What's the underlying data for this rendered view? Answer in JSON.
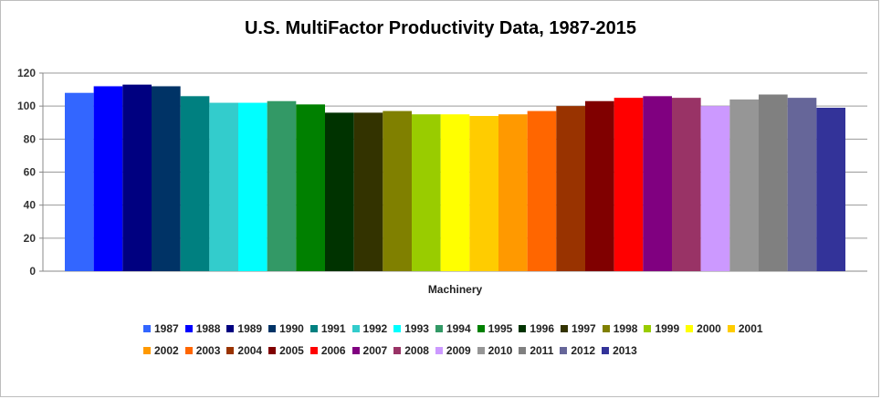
{
  "chart_data": {
    "type": "bar",
    "title": "U.S. MultiFactor Productivity Data, 1987-2015",
    "xlabel": "",
    "ylabel": "",
    "categories": [
      "Machinery"
    ],
    "ylim": [
      0,
      120
    ],
    "yticks": [
      0,
      20,
      40,
      60,
      80,
      100,
      120
    ],
    "grid": true,
    "legend_position": "bottom",
    "series": [
      {
        "name": "1987",
        "color": "#3366ff",
        "values": [
          108
        ]
      },
      {
        "name": "1988",
        "color": "#0000ff",
        "values": [
          112
        ]
      },
      {
        "name": "1989",
        "color": "#000080",
        "values": [
          113
        ]
      },
      {
        "name": "1990",
        "color": "#003366",
        "values": [
          112
        ]
      },
      {
        "name": "1991",
        "color": "#008080",
        "values": [
          106
        ]
      },
      {
        "name": "1992",
        "color": "#33cccc",
        "values": [
          102
        ]
      },
      {
        "name": "1993",
        "color": "#00ffff",
        "values": [
          102
        ]
      },
      {
        "name": "1994",
        "color": "#339966",
        "values": [
          103
        ]
      },
      {
        "name": "1995",
        "color": "#008000",
        "values": [
          101
        ]
      },
      {
        "name": "1996",
        "color": "#003300",
        "values": [
          96
        ]
      },
      {
        "name": "1997",
        "color": "#333300",
        "values": [
          96
        ]
      },
      {
        "name": "1998",
        "color": "#808000",
        "values": [
          97
        ]
      },
      {
        "name": "1999",
        "color": "#99cc00",
        "values": [
          95
        ]
      },
      {
        "name": "2000",
        "color": "#ffff00",
        "values": [
          95
        ]
      },
      {
        "name": "2001",
        "color": "#ffcc00",
        "values": [
          94
        ]
      },
      {
        "name": "2002",
        "color": "#ff9900",
        "values": [
          95
        ]
      },
      {
        "name": "2003",
        "color": "#ff6600",
        "values": [
          97
        ]
      },
      {
        "name": "2004",
        "color": "#993300",
        "values": [
          100
        ]
      },
      {
        "name": "2005",
        "color": "#800000",
        "values": [
          103
        ]
      },
      {
        "name": "2006",
        "color": "#ff0000",
        "values": [
          105
        ]
      },
      {
        "name": "2007",
        "color": "#800080",
        "values": [
          106
        ]
      },
      {
        "name": "2008",
        "color": "#993366",
        "values": [
          105
        ]
      },
      {
        "name": "2009",
        "color": "#cc99ff",
        "values": [
          100
        ]
      },
      {
        "name": "2010",
        "color": "#969696",
        "values": [
          104
        ]
      },
      {
        "name": "2011",
        "color": "#808080",
        "values": [
          107
        ]
      },
      {
        "name": "2012",
        "color": "#666699",
        "values": [
          105
        ]
      },
      {
        "name": "2013",
        "color": "#333399",
        "values": [
          99
        ]
      }
    ]
  }
}
